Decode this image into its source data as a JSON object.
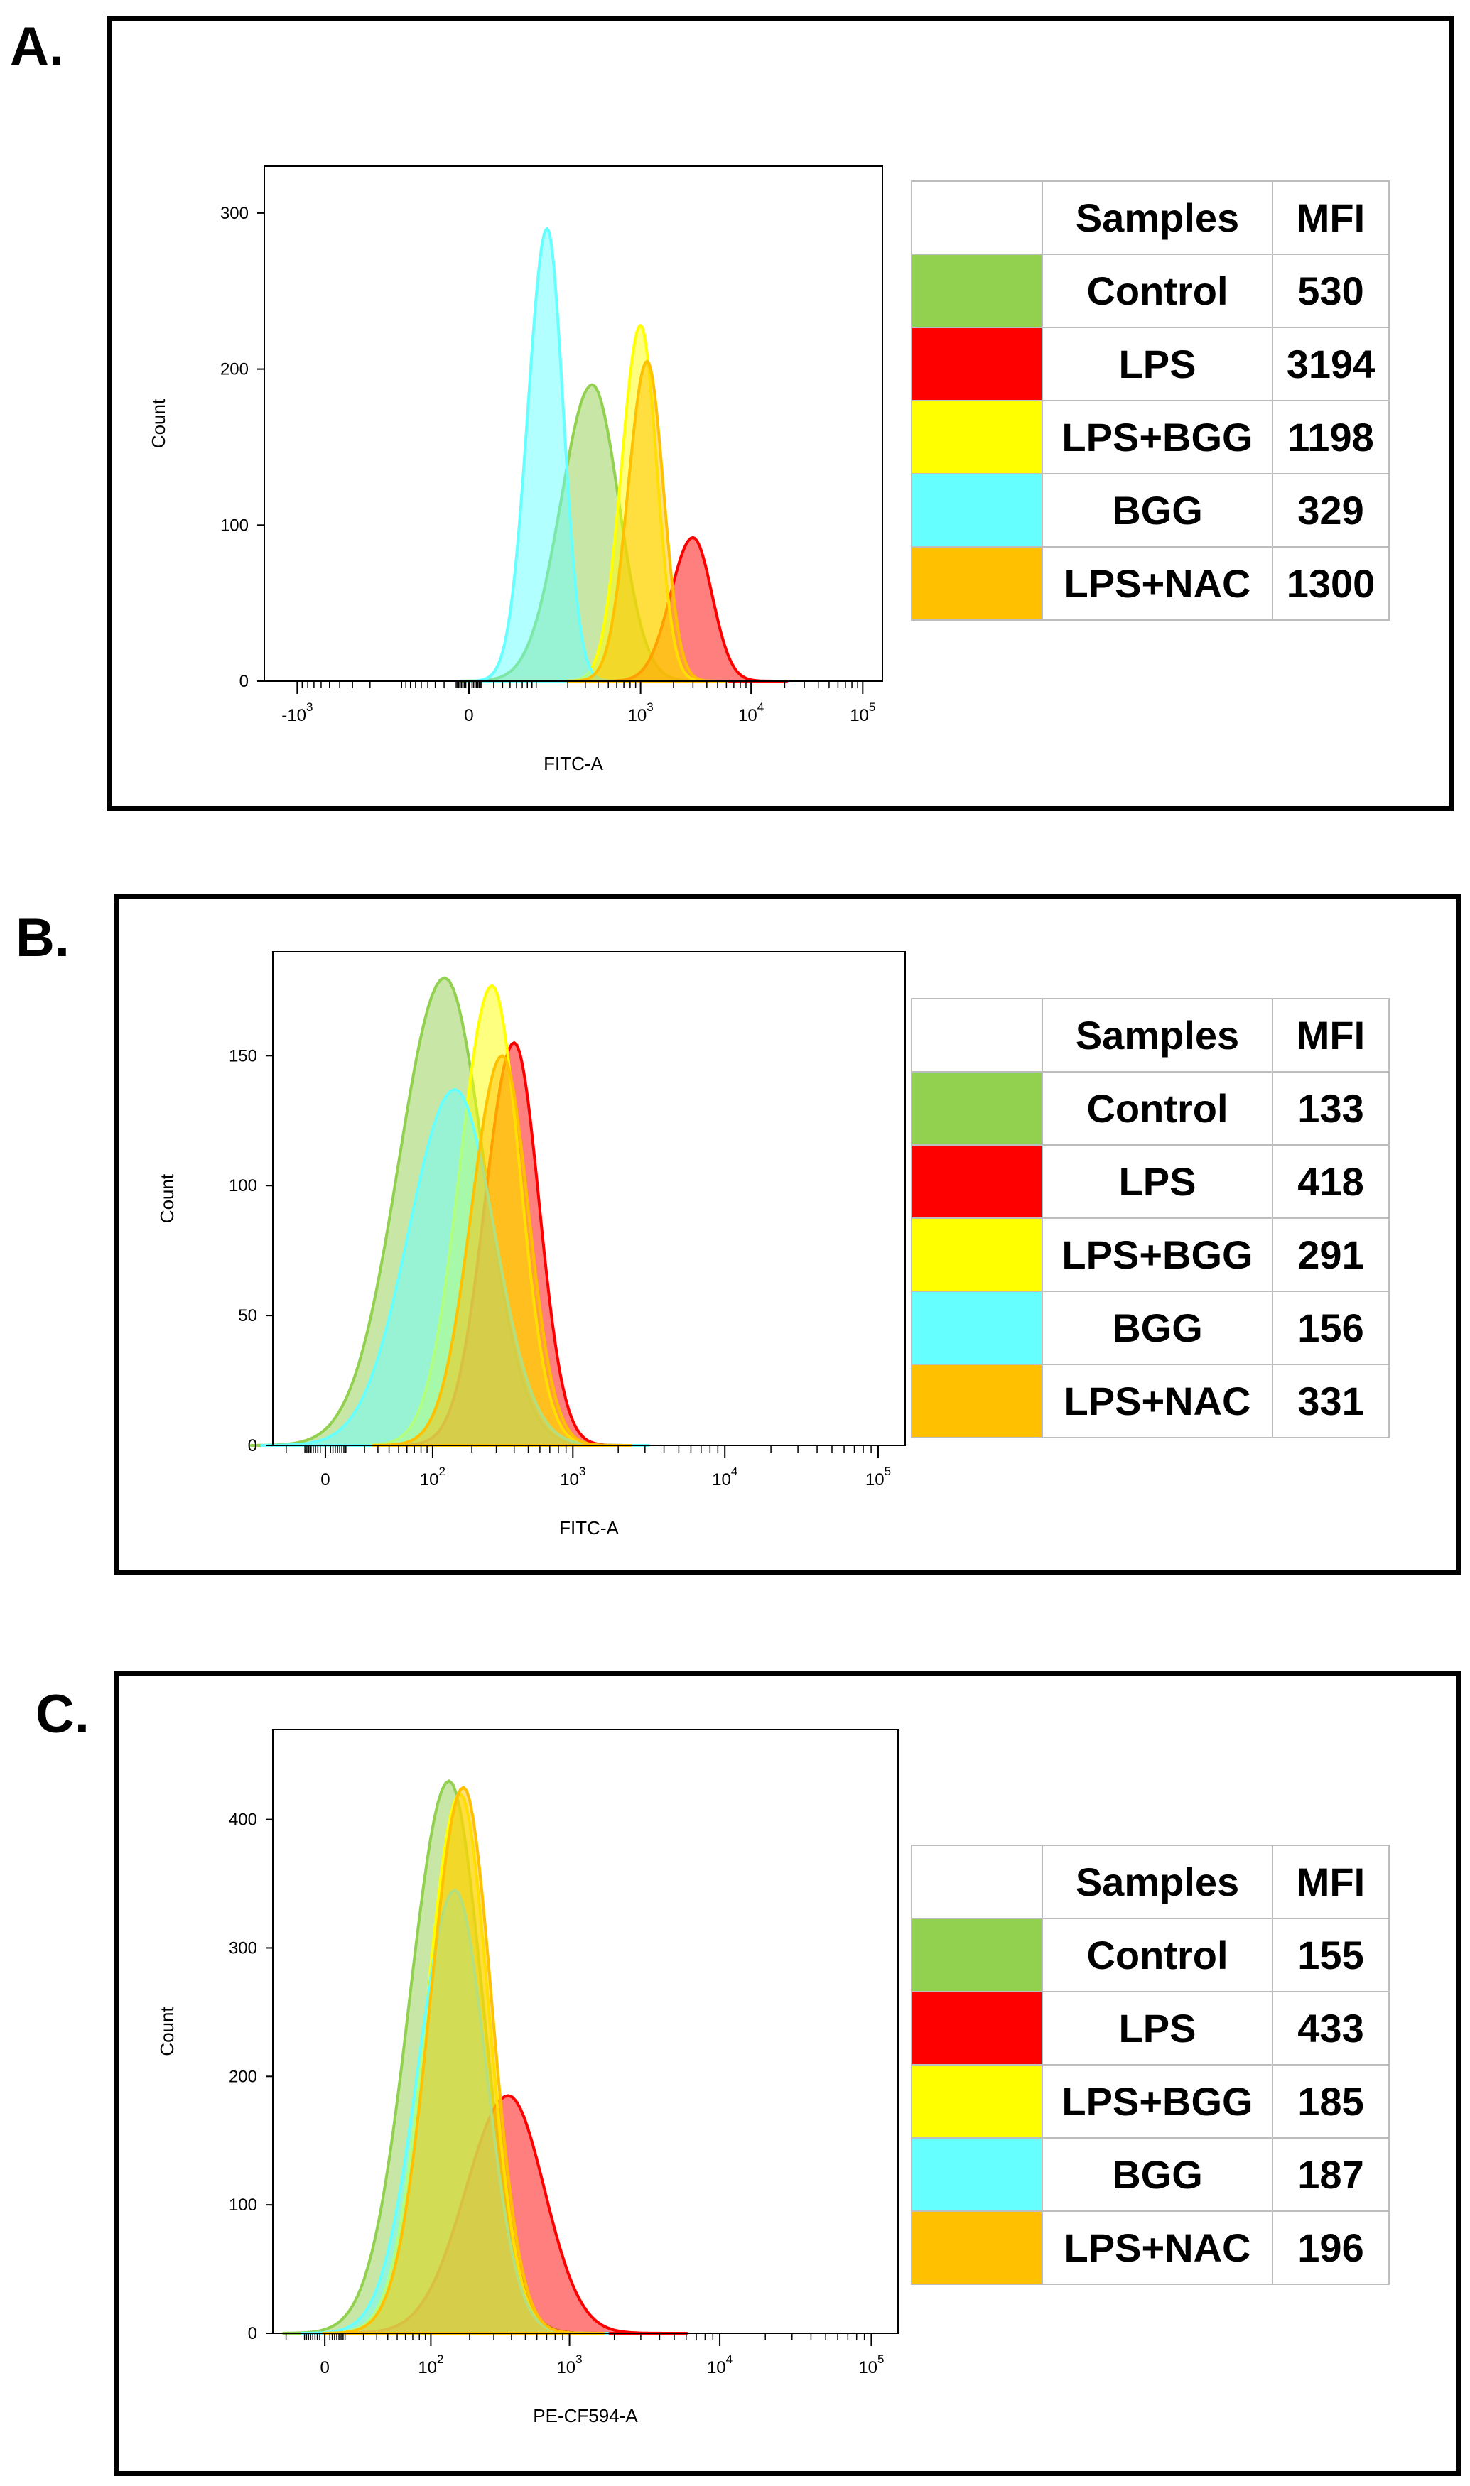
{
  "panels": [
    {
      "label": "A.",
      "table": {
        "header": [
          "Samples",
          "MFI"
        ],
        "rows": [
          {
            "sample": "Control",
            "mfi": "530",
            "color": "#92d050"
          },
          {
            "sample": "LPS",
            "mfi": "3194",
            "color": "#ff0000"
          },
          {
            "sample": "LPS+BGG",
            "mfi": "1198",
            "color": "#ffff00"
          },
          {
            "sample": "BGG",
            "mfi": "329",
            "color": "#66ffff"
          },
          {
            "sample": "LPS+NAC",
            "mfi": "1300",
            "color": "#ffc000"
          }
        ]
      }
    },
    {
      "label": "B.",
      "table": {
        "header": [
          "Samples",
          "MFI"
        ],
        "rows": [
          {
            "sample": "Control",
            "mfi": "133",
            "color": "#92d050"
          },
          {
            "sample": "LPS",
            "mfi": "418",
            "color": "#ff0000"
          },
          {
            "sample": "LPS+BGG",
            "mfi": "291",
            "color": "#ffff00"
          },
          {
            "sample": "BGG",
            "mfi": "156",
            "color": "#66ffff"
          },
          {
            "sample": "LPS+NAC",
            "mfi": "331",
            "color": "#ffc000"
          }
        ]
      }
    },
    {
      "label": "C.",
      "table": {
        "header": [
          "Samples",
          "MFI"
        ],
        "rows": [
          {
            "sample": "Control",
            "mfi": "155",
            "color": "#92d050"
          },
          {
            "sample": "LPS",
            "mfi": "433",
            "color": "#ff0000"
          },
          {
            "sample": "LPS+BGG",
            "mfi": "185",
            "color": "#ffff00"
          },
          {
            "sample": "BGG",
            "mfi": "187",
            "color": "#66ffff"
          },
          {
            "sample": "LPS+NAC",
            "mfi": "196",
            "color": "#ffc000"
          }
        ]
      }
    }
  ],
  "chart_data": [
    {
      "type": "area",
      "panel": "A.",
      "title": "",
      "xlabel": "FITC-A",
      "ylabel": "Count",
      "xscale": "biexponential",
      "xlim": [
        -2000,
        150000
      ],
      "ylim": [
        0,
        330
      ],
      "yticks": [
        0,
        100,
        200,
        300
      ],
      "xticks": [
        {
          "value": -1000,
          "label": "-10",
          "exp": "3"
        },
        {
          "value": 0,
          "label": "0",
          "exp": ""
        },
        {
          "value": 1000,
          "label": "10",
          "exp": "3"
        },
        {
          "value": 10000,
          "label": "10",
          "exp": "4"
        },
        {
          "value": 100000,
          "label": "10",
          "exp": "5"
        }
      ],
      "series": [
        {
          "name": "Control",
          "color": "#92d050",
          "peak_x": 350,
          "peak_count": 190,
          "width": 0.28
        },
        {
          "name": "LPS",
          "color": "#ff0000",
          "peak_x": 3000,
          "peak_count": 92,
          "width": 0.2
        },
        {
          "name": "LPS+BGG",
          "color": "#ffff00",
          "peak_x": 1000,
          "peak_count": 228,
          "width": 0.17
        },
        {
          "name": "BGG",
          "color": "#66ffff",
          "peak_x": 120,
          "peak_count": 290,
          "width": 0.17
        },
        {
          "name": "LPS+NAC",
          "color": "#ffc000",
          "peak_x": 1150,
          "peak_count": 205,
          "width": 0.17
        }
      ]
    },
    {
      "type": "area",
      "panel": "B.",
      "title": "",
      "xlabel": "FITC-A",
      "ylabel": "Count",
      "xscale": "biexponential",
      "xlim": [
        -30,
        150000
      ],
      "ylim": [
        0,
        190
      ],
      "yticks": [
        0,
        50,
        100,
        150
      ],
      "xticks": [
        {
          "value": 0,
          "label": "0",
          "exp": ""
        },
        {
          "value": 100,
          "label": "10",
          "exp": "2"
        },
        {
          "value": 1000,
          "label": "10",
          "exp": "3"
        },
        {
          "value": 10000,
          "label": "10",
          "exp": "4"
        },
        {
          "value": 100000,
          "label": "10",
          "exp": "5"
        }
      ],
      "series": [
        {
          "name": "Control",
          "color": "#92d050",
          "peak_x": 125,
          "peak_count": 180,
          "width": 0.3
        },
        {
          "name": "LPS",
          "color": "#ff0000",
          "peak_x": 400,
          "peak_count": 155,
          "width": 0.19
        },
        {
          "name": "LPS+BGG",
          "color": "#ffff00",
          "peak_x": 280,
          "peak_count": 177,
          "width": 0.21
        },
        {
          "name": "BGG",
          "color": "#66ffff",
          "peak_x": 150,
          "peak_count": 137,
          "width": 0.3
        },
        {
          "name": "LPS+NAC",
          "color": "#ffc000",
          "peak_x": 330,
          "peak_count": 150,
          "width": 0.2
        }
      ]
    },
    {
      "type": "area",
      "panel": "C.",
      "title": "",
      "xlabel": "PE-CF594-A",
      "ylabel": "Count",
      "xscale": "biexponential",
      "xlim": [
        -30,
        150000
      ],
      "ylim": [
        0,
        470
      ],
      "yticks": [
        0,
        100,
        200,
        300,
        400
      ],
      "xticks": [
        {
          "value": 0,
          "label": "0",
          "exp": ""
        },
        {
          "value": 100,
          "label": "10",
          "exp": "2"
        },
        {
          "value": 1000,
          "label": "10",
          "exp": "3"
        },
        {
          "value": 10000,
          "label": "10",
          "exp": "4"
        },
        {
          "value": 100000,
          "label": "10",
          "exp": "5"
        }
      ],
      "series": [
        {
          "name": "Control",
          "color": "#92d050",
          "peak_x": 140,
          "peak_count": 430,
          "width": 0.26
        },
        {
          "name": "LPS",
          "color": "#ff0000",
          "peak_x": 380,
          "peak_count": 185,
          "width": 0.28
        },
        {
          "name": "LPS+BGG",
          "color": "#ffff00",
          "peak_x": 170,
          "peak_count": 420,
          "width": 0.22
        },
        {
          "name": "BGG",
          "color": "#66ffff",
          "peak_x": 155,
          "peak_count": 345,
          "width": 0.24
        },
        {
          "name": "LPS+NAC",
          "color": "#ffc000",
          "peak_x": 180,
          "peak_count": 425,
          "width": 0.22
        }
      ]
    }
  ]
}
